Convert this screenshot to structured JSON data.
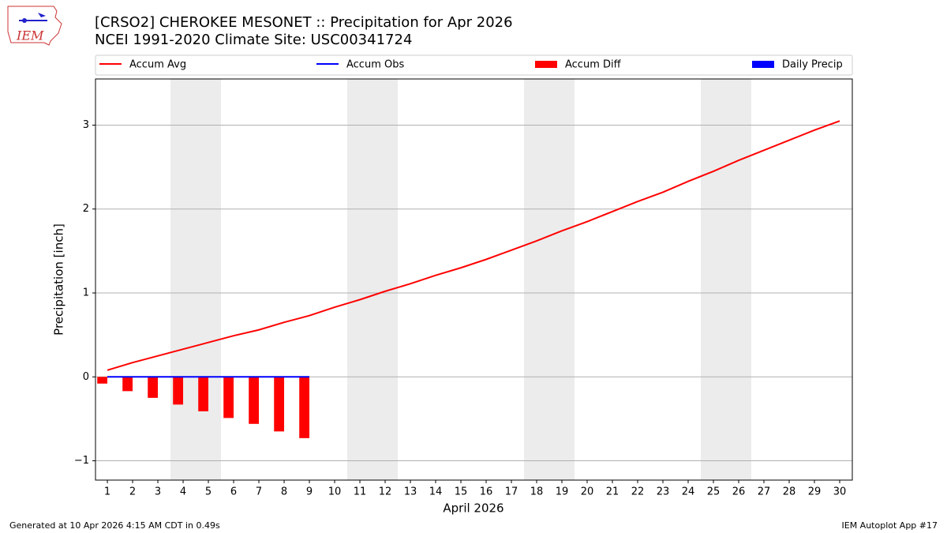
{
  "chart_data": {
    "type": "line",
    "title": "[CRSO2] CHEROKEE MESONET :: Precipitation for Apr 2026",
    "subtitle": "NCEI 1991-2020 Climate Site: USC00341724",
    "x_label": "April 2026",
    "y_label": "Precipitation [inch]",
    "x": [
      1,
      2,
      3,
      4,
      5,
      6,
      7,
      8,
      9,
      10,
      11,
      12,
      13,
      14,
      15,
      16,
      17,
      18,
      19,
      20,
      21,
      22,
      23,
      24,
      25,
      26,
      27,
      28,
      29,
      30
    ],
    "xlim": [
      0.53,
      30.5
    ],
    "xticks": [
      1,
      2,
      3,
      4,
      5,
      6,
      7,
      8,
      9,
      10,
      11,
      12,
      13,
      14,
      15,
      16,
      17,
      18,
      19,
      20,
      21,
      22,
      23,
      24,
      25,
      26,
      27,
      28,
      29,
      30
    ],
    "ylim": [
      -1.23,
      3.55
    ],
    "yticks": [
      {
        "value": -1,
        "label": "−1"
      },
      0,
      1,
      2,
      3
    ],
    "grid": true,
    "shaded_spans": [
      [
        3.5,
        5.5
      ],
      [
        10.5,
        12.5
      ],
      [
        17.5,
        19.5
      ],
      [
        24.5,
        26.5
      ]
    ],
    "series": [
      {
        "name": "Accum Avg",
        "kind": "line",
        "color": "#ff0000",
        "values": [
          0.08,
          0.17,
          0.25,
          0.33,
          0.41,
          0.49,
          0.56,
          0.65,
          0.73,
          0.83,
          0.92,
          1.02,
          1.11,
          1.21,
          1.3,
          1.4,
          1.51,
          1.62,
          1.74,
          1.85,
          1.97,
          2.09,
          2.2,
          2.33,
          2.45,
          2.58,
          2.7,
          2.82,
          2.94,
          3.05
        ]
      },
      {
        "name": "Accum Obs",
        "kind": "line",
        "color": "#0000ff",
        "values": [
          0,
          0,
          0,
          0,
          0,
          0,
          0,
          0,
          0,
          null,
          null,
          null,
          null,
          null,
          null,
          null,
          null,
          null,
          null,
          null,
          null,
          null,
          null,
          null,
          null,
          null,
          null,
          null,
          null,
          null
        ]
      },
      {
        "name": "Accum Diff",
        "kind": "bar",
        "offset": -0.4,
        "color": "#ff0000",
        "values": [
          -0.08,
          -0.17,
          -0.25,
          -0.33,
          -0.41,
          -0.49,
          -0.56,
          -0.65,
          -0.73,
          null,
          null,
          null,
          null,
          null,
          null,
          null,
          null,
          null,
          null,
          null,
          null,
          null,
          null,
          null,
          null,
          null,
          null,
          null,
          null,
          null
        ]
      },
      {
        "name": "Daily Precip",
        "kind": "bar",
        "offset": 0,
        "color": "#0000ff",
        "values": [
          0,
          0,
          0,
          0,
          0,
          0,
          0,
          0,
          0,
          null,
          null,
          null,
          null,
          null,
          null,
          null,
          null,
          null,
          null,
          null,
          null,
          null,
          null,
          null,
          null,
          null,
          null,
          null,
          null,
          null
        ]
      }
    ]
  },
  "logo_text": "IEM",
  "footer_left": "Generated at 10 Apr 2026 4:15 AM CDT in 0.49s",
  "footer_right": "IEM Autoplot App #17"
}
